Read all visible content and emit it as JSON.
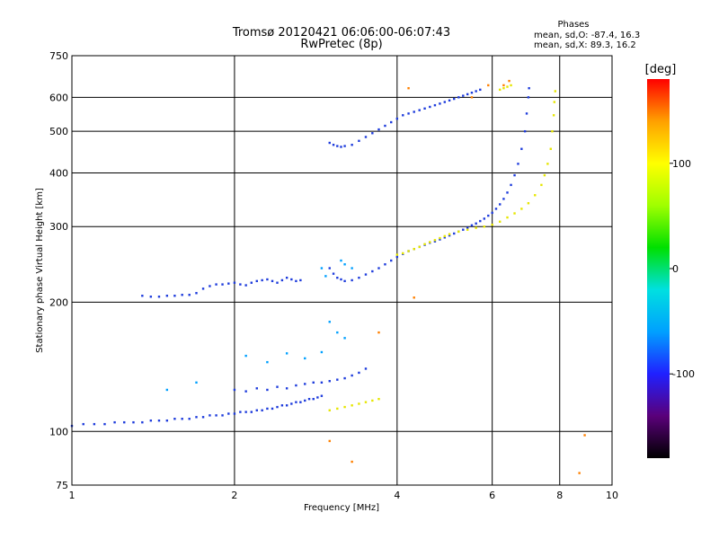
{
  "chart_data": {
    "type": "scatter",
    "title": "Tromsø 20120421 06:06:00-06:07:43",
    "subtitle": "RwPretec (8p)",
    "xlabel": "Frequency [MHz]",
    "ylabel": "Stationary phase Virtual Height [km]",
    "x_scale": "log",
    "y_scale": "log",
    "xlim": [
      1,
      10
    ],
    "ylim": [
      75,
      750
    ],
    "x_ticks": [
      1,
      2,
      4,
      6,
      8,
      10
    ],
    "y_ticks": [
      75,
      100,
      200,
      300,
      400,
      500,
      600,
      750
    ],
    "grid": true,
    "phase_info": {
      "heading": "Phases",
      "o_line": "mean, sd,O: -87.4, 16.3",
      "x_line": "mean, sd,X:  89.3, 16.2"
    },
    "colorbar": {
      "label": "[deg]",
      "min": -180,
      "max": 180,
      "ticks": [
        100,
        0,
        -100
      ],
      "colormap": [
        "#000000",
        "#5a007a",
        "#2020ff",
        "#00a0ff",
        "#00e0e0",
        "#00e000",
        "#a0ff00",
        "#ffff00",
        "#ffa000",
        "#ff0000"
      ]
    },
    "series": [
      {
        "color": "#1e3cdc",
        "points": [
          [
            1.0,
            103
          ],
          [
            1.05,
            104
          ],
          [
            1.1,
            104
          ],
          [
            1.15,
            104
          ],
          [
            1.2,
            105
          ],
          [
            1.25,
            105
          ],
          [
            1.3,
            105
          ],
          [
            1.35,
            105
          ],
          [
            1.4,
            106
          ],
          [
            1.45,
            106
          ],
          [
            1.5,
            106
          ],
          [
            1.55,
            107
          ],
          [
            1.6,
            107
          ],
          [
            1.65,
            107
          ],
          [
            1.7,
            108
          ],
          [
            1.75,
            108
          ],
          [
            1.8,
            109
          ],
          [
            1.85,
            109
          ],
          [
            1.9,
            109
          ],
          [
            1.95,
            110
          ],
          [
            2.0,
            110
          ],
          [
            2.05,
            111
          ],
          [
            2.1,
            111
          ],
          [
            2.15,
            111
          ],
          [
            2.2,
            112
          ],
          [
            2.25,
            112
          ],
          [
            2.3,
            113
          ],
          [
            2.35,
            113
          ],
          [
            2.4,
            114
          ],
          [
            2.45,
            115
          ],
          [
            2.5,
            115
          ],
          [
            2.55,
            116
          ],
          [
            2.6,
            117
          ],
          [
            2.65,
            117
          ],
          [
            2.7,
            118
          ],
          [
            2.75,
            119
          ],
          [
            2.8,
            119
          ],
          [
            2.85,
            120
          ],
          [
            2.9,
            121
          ],
          [
            3.0,
            240
          ],
          [
            3.05,
            233
          ],
          [
            3.1,
            228
          ],
          [
            3.15,
            226
          ],
          [
            3.2,
            224
          ],
          [
            3.3,
            225
          ],
          [
            3.4,
            228
          ],
          [
            3.5,
            232
          ],
          [
            3.6,
            236
          ],
          [
            3.7,
            240
          ],
          [
            3.8,
            245
          ],
          [
            3.9,
            250
          ],
          [
            4.0,
            255
          ],
          [
            4.1,
            259
          ],
          [
            4.2,
            263
          ],
          [
            4.3,
            266
          ],
          [
            4.4,
            269
          ],
          [
            4.5,
            272
          ],
          [
            4.6,
            275
          ],
          [
            4.7,
            277
          ],
          [
            4.8,
            280
          ],
          [
            4.9,
            283
          ],
          [
            5.0,
            286
          ],
          [
            5.1,
            289
          ],
          [
            5.2,
            292
          ],
          [
            5.3,
            295
          ],
          [
            5.4,
            298
          ],
          [
            5.5,
            302
          ],
          [
            5.6,
            305
          ],
          [
            5.7,
            309
          ],
          [
            5.8,
            313
          ],
          [
            5.9,
            318
          ],
          [
            6.0,
            323
          ],
          [
            6.1,
            330
          ],
          [
            6.2,
            338
          ],
          [
            6.3,
            348
          ],
          [
            6.4,
            360
          ],
          [
            6.5,
            375
          ],
          [
            6.6,
            395
          ],
          [
            6.7,
            420
          ],
          [
            6.8,
            455
          ],
          [
            6.9,
            500
          ],
          [
            6.95,
            550
          ],
          [
            7.0,
            600
          ],
          [
            7.02,
            630
          ],
          [
            1.35,
            207
          ],
          [
            1.4,
            206
          ],
          [
            1.45,
            206
          ],
          [
            1.5,
            207
          ],
          [
            1.55,
            207
          ],
          [
            1.6,
            208
          ],
          [
            1.65,
            208
          ],
          [
            1.7,
            210
          ],
          [
            1.75,
            215
          ],
          [
            1.8,
            218
          ],
          [
            1.85,
            220
          ],
          [
            1.9,
            220
          ],
          [
            1.95,
            221
          ],
          [
            2.0,
            222
          ],
          [
            2.05,
            220
          ],
          [
            2.1,
            219
          ],
          [
            2.15,
            222
          ],
          [
            2.2,
            224
          ],
          [
            2.25,
            225
          ],
          [
            2.3,
            226
          ],
          [
            2.35,
            224
          ],
          [
            2.4,
            222
          ],
          [
            2.45,
            225
          ],
          [
            2.5,
            228
          ],
          [
            2.55,
            226
          ],
          [
            2.6,
            224
          ],
          [
            2.65,
            225
          ],
          [
            3.0,
            470
          ],
          [
            3.05,
            465
          ],
          [
            3.1,
            462
          ],
          [
            3.15,
            460
          ],
          [
            3.2,
            462
          ],
          [
            3.3,
            465
          ],
          [
            3.4,
            475
          ],
          [
            3.5,
            485
          ],
          [
            3.6,
            495
          ],
          [
            3.7,
            505
          ],
          [
            3.8,
            515
          ],
          [
            3.9,
            525
          ],
          [
            4.0,
            535
          ],
          [
            4.1,
            545
          ],
          [
            4.2,
            550
          ],
          [
            4.3,
            555
          ],
          [
            4.4,
            560
          ],
          [
            4.5,
            565
          ],
          [
            4.6,
            570
          ],
          [
            4.7,
            575
          ],
          [
            4.8,
            580
          ],
          [
            4.9,
            585
          ],
          [
            5.0,
            590
          ],
          [
            5.1,
            595
          ],
          [
            5.2,
            600
          ],
          [
            5.3,
            605
          ],
          [
            5.4,
            610
          ],
          [
            5.5,
            615
          ],
          [
            5.6,
            620
          ],
          [
            5.7,
            625
          ],
          [
            2.0,
            125
          ],
          [
            2.1,
            124
          ],
          [
            2.2,
            126
          ],
          [
            2.3,
            125
          ],
          [
            2.4,
            127
          ],
          [
            2.5,
            126
          ],
          [
            2.6,
            128
          ],
          [
            2.7,
            129
          ],
          [
            2.8,
            130
          ],
          [
            2.9,
            130
          ],
          [
            3.0,
            131
          ],
          [
            3.1,
            132
          ],
          [
            3.2,
            133
          ],
          [
            3.3,
            135
          ],
          [
            3.4,
            137
          ],
          [
            3.5,
            140
          ]
        ]
      },
      {
        "color": "#e6e600",
        "points": [
          [
            3.0,
            112
          ],
          [
            3.1,
            113
          ],
          [
            3.2,
            114
          ],
          [
            3.3,
            115
          ],
          [
            3.4,
            116
          ],
          [
            3.5,
            117
          ],
          [
            3.6,
            118
          ],
          [
            3.7,
            119
          ],
          [
            4.0,
            258
          ],
          [
            4.1,
            260
          ],
          [
            4.2,
            263
          ],
          [
            4.3,
            266
          ],
          [
            4.4,
            269
          ],
          [
            4.5,
            273
          ],
          [
            4.6,
            276
          ],
          [
            4.7,
            279
          ],
          [
            4.8,
            282
          ],
          [
            4.9,
            285
          ],
          [
            5.0,
            288
          ],
          [
            5.2,
            292
          ],
          [
            5.4,
            295
          ],
          [
            5.6,
            298
          ],
          [
            5.8,
            300
          ],
          [
            6.0,
            303
          ],
          [
            6.2,
            308
          ],
          [
            6.4,
            315
          ],
          [
            6.6,
            322
          ],
          [
            6.8,
            330
          ],
          [
            7.0,
            340
          ],
          [
            7.2,
            355
          ],
          [
            7.4,
            375
          ],
          [
            7.5,
            395
          ],
          [
            7.6,
            420
          ],
          [
            7.7,
            455
          ],
          [
            7.75,
            500
          ],
          [
            7.8,
            545
          ],
          [
            7.82,
            585
          ],
          [
            7.85,
            620
          ],
          [
            6.2,
            625
          ],
          [
            6.3,
            630
          ],
          [
            6.4,
            635
          ],
          [
            6.5,
            640
          ]
        ]
      },
      {
        "color": "#00a0ff",
        "points": [
          [
            2.1,
            150
          ],
          [
            2.3,
            145
          ],
          [
            2.5,
            152
          ],
          [
            2.7,
            148
          ],
          [
            2.9,
            153
          ],
          [
            3.0,
            180
          ],
          [
            3.1,
            170
          ],
          [
            3.2,
            165
          ],
          [
            1.5,
            125
          ],
          [
            1.7,
            130
          ],
          [
            2.9,
            240
          ],
          [
            2.95,
            230
          ],
          [
            3.15,
            250
          ],
          [
            3.2,
            245
          ],
          [
            3.3,
            240
          ]
        ]
      },
      {
        "color": "#ff8000",
        "points": [
          [
            3.0,
            95
          ],
          [
            3.3,
            85
          ],
          [
            3.7,
            170
          ],
          [
            4.2,
            630
          ],
          [
            5.9,
            640
          ],
          [
            6.3,
            640
          ],
          [
            6.45,
            655
          ],
          [
            8.7,
            80
          ],
          [
            8.9,
            98
          ],
          [
            4.3,
            205
          ],
          [
            5.5,
            600
          ]
        ]
      }
    ]
  }
}
